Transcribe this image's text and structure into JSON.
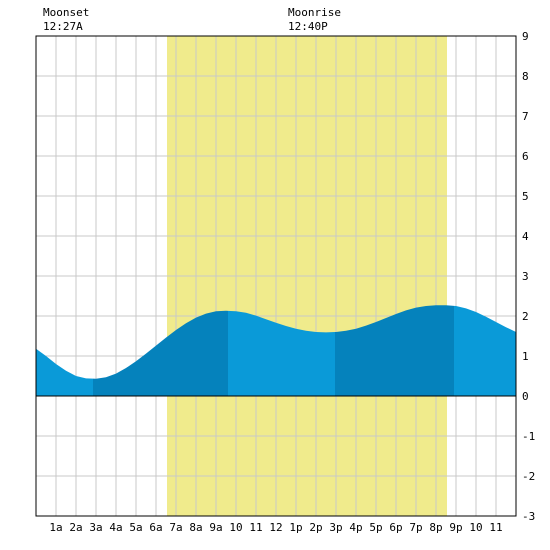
{
  "header": {
    "moonset_label": "Moonset",
    "moonset_time": "12:27A",
    "moonrise_label": "Moonrise",
    "moonrise_time": "12:40P"
  },
  "chart_data": {
    "type": "area",
    "title": "",
    "xlabel": "",
    "ylabel": "",
    "xlim": [
      0,
      24
    ],
    "ylim": [
      -3,
      9
    ],
    "grid": true,
    "x_ticks": [
      {
        "x": 1,
        "label": "1a"
      },
      {
        "x": 2,
        "label": "2a"
      },
      {
        "x": 3,
        "label": "3a"
      },
      {
        "x": 4,
        "label": "4a"
      },
      {
        "x": 5,
        "label": "5a"
      },
      {
        "x": 6,
        "label": "6a"
      },
      {
        "x": 7,
        "label": "7a"
      },
      {
        "x": 8,
        "label": "8a"
      },
      {
        "x": 9,
        "label": "9a"
      },
      {
        "x": 10,
        "label": "10"
      },
      {
        "x": 11,
        "label": "11"
      },
      {
        "x": 12,
        "label": "12"
      },
      {
        "x": 13,
        "label": "1p"
      },
      {
        "x": 14,
        "label": "2p"
      },
      {
        "x": 15,
        "label": "3p"
      },
      {
        "x": 16,
        "label": "4p"
      },
      {
        "x": 17,
        "label": "5p"
      },
      {
        "x": 18,
        "label": "6p"
      },
      {
        "x": 19,
        "label": "7p"
      },
      {
        "x": 20,
        "label": "8p"
      },
      {
        "x": 21,
        "label": "9p"
      },
      {
        "x": 22,
        "label": "10"
      },
      {
        "x": 23,
        "label": "11"
      }
    ],
    "y_ticks": [
      -3,
      -2,
      -1,
      0,
      1,
      2,
      3,
      4,
      5,
      6,
      7,
      8,
      9
    ],
    "daylight": {
      "start": 6.55,
      "end": 20.55
    },
    "tide_extremes": [
      {
        "time": 2.85,
        "height": 0.42,
        "type": "low"
      },
      {
        "time": 9.6,
        "height": 2.13,
        "type": "high"
      },
      {
        "time": 14.95,
        "height": 1.6,
        "type": "low"
      },
      {
        "time": 20.9,
        "height": 2.27,
        "type": "high"
      }
    ],
    "series": [
      {
        "x": [
          0,
          0.5,
          1,
          1.5,
          2,
          2.5,
          3,
          3.5,
          4,
          4.5,
          5,
          5.5,
          6,
          6.5,
          7,
          7.5,
          8,
          8.5,
          9,
          9.5,
          10,
          10.5,
          11,
          11.5,
          12,
          12.5,
          13,
          13.5,
          14,
          14.5,
          15,
          15.5,
          16,
          16.5,
          17,
          17.5,
          18,
          18.5,
          19,
          19.5,
          20,
          20.5,
          21,
          21.5,
          22,
          22.5,
          23,
          23.5,
          24
        ],
        "values": [
          1.18,
          1.0,
          0.8,
          0.63,
          0.5,
          0.44,
          0.43,
          0.47,
          0.56,
          0.7,
          0.87,
          1.06,
          1.26,
          1.46,
          1.65,
          1.82,
          1.96,
          2.06,
          2.12,
          2.13,
          2.12,
          2.08,
          2.01,
          1.92,
          1.83,
          1.75,
          1.68,
          1.63,
          1.6,
          1.59,
          1.6,
          1.63,
          1.68,
          1.76,
          1.85,
          1.95,
          2.05,
          2.14,
          2.21,
          2.25,
          2.27,
          2.27,
          2.25,
          2.19,
          2.1,
          1.98,
          1.85,
          1.72,
          1.6
        ]
      }
    ],
    "colors": {
      "daylight": "#f0eb8c",
      "tide_light": "#0a9ad8",
      "tide_dark": "#0582bc",
      "grid": "#c8c8c8",
      "axis": "#000000"
    }
  }
}
